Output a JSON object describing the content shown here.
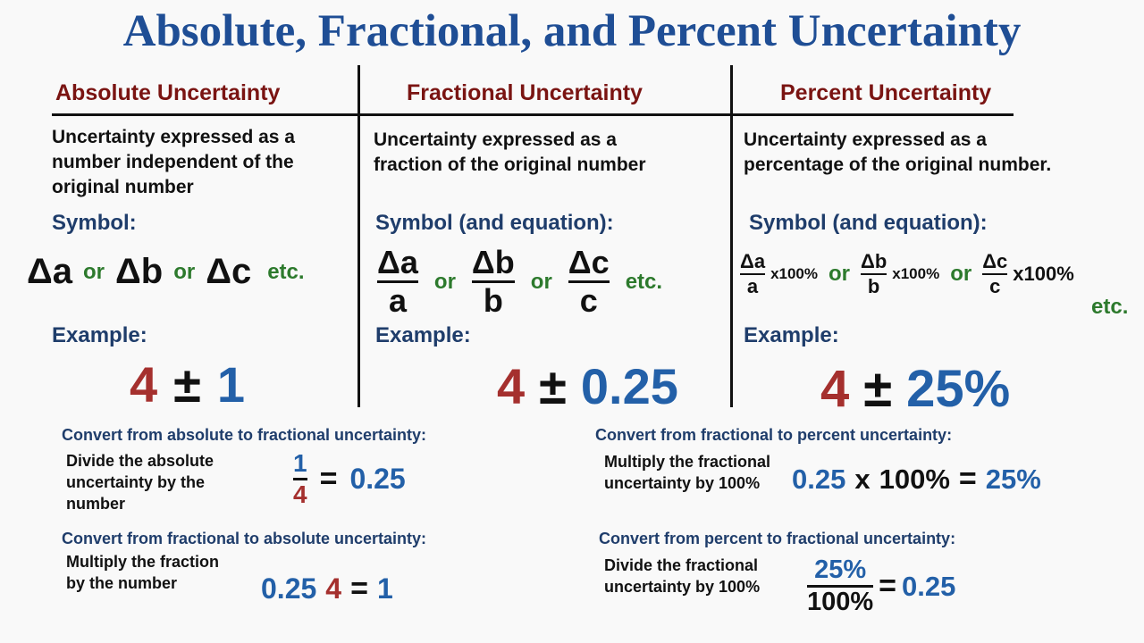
{
  "title": "Absolute, Fractional, and Percent Uncertainty",
  "columns": [
    {
      "heading": "Absolute Uncertainty",
      "description": [
        "Uncertainty expressed as a",
        "number independent of the",
        "original number"
      ],
      "symbol_label": "Symbol:",
      "symbols": [
        "Δa",
        "Δb",
        "Δc"
      ],
      "or": "or",
      "etc": "etc.",
      "example_label": "Example:",
      "example": {
        "value": "4",
        "pm": "±",
        "uncertainty": "1"
      }
    },
    {
      "heading": "Fractional Uncertainty",
      "description": [
        "Uncertainty expressed as a",
        "fraction of the original number"
      ],
      "symbol_label": "Symbol (and equation):",
      "fractions": [
        {
          "num": "Δa",
          "den": "a"
        },
        {
          "num": "Δb",
          "den": "b"
        },
        {
          "num": "Δc",
          "den": "c"
        }
      ],
      "or": "or",
      "etc": "etc.",
      "example_label": "Example:",
      "example": {
        "value": "4",
        "pm": "±",
        "uncertainty": "0.25"
      }
    },
    {
      "heading": "Percent Uncertainty",
      "description": [
        "Uncertainty expressed as a",
        "percentage of the original number."
      ],
      "symbol_label": "Symbol (and equation):",
      "fractions": [
        {
          "num": "Δa",
          "den": "a"
        },
        {
          "num": "Δb",
          "den": "b"
        },
        {
          "num": "Δc",
          "den": "c"
        }
      ],
      "multiplier": "x100%",
      "or": "or",
      "etc": "etc.",
      "example_label": "Example:",
      "example": {
        "value": "4",
        "pm": "±",
        "uncertainty": "25%"
      }
    }
  ],
  "conversions": {
    "abs_to_frac": {
      "heading": "Convert from absolute to fractional uncertainty:",
      "description": [
        "Divide the absolute",
        "uncertainty by the",
        "number"
      ],
      "num": "1",
      "den": "4",
      "eq": "=",
      "result": "0.25"
    },
    "frac_to_abs": {
      "heading": "Convert from fractional to absolute uncertainty:",
      "description": [
        "Multiply the fraction",
        "by the number"
      ],
      "a": "0.25",
      "b": "4",
      "eq": "=",
      "result": "1"
    },
    "frac_to_pct": {
      "heading": "Convert from fractional to percent uncertainty:",
      "description": [
        "Multiply the fractional",
        "uncertainty by 100%"
      ],
      "a": "0.25",
      "times": "x",
      "b": "100%",
      "eq": "=",
      "result": "25%"
    },
    "pct_to_frac": {
      "heading": "Convert from percent to fractional uncertainty:",
      "description": [
        "Divide the fractional",
        "uncertainty by 100%"
      ],
      "num": "25%",
      "den": "100%",
      "eq": "=",
      "result": "0.25"
    }
  }
}
